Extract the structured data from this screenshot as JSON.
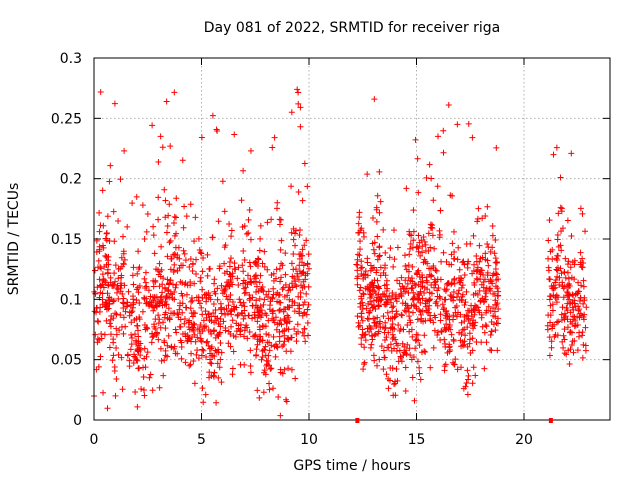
{
  "chart_data": {
    "type": "scatter",
    "title": "Day 081 of 2022, SRMTID for receiver riga",
    "xlabel": "GPS time / hours",
    "ylabel": "SRMTID / TECUs",
    "xlim": [
      0,
      24
    ],
    "ylim": [
      0,
      0.3
    ],
    "xticks": [
      0,
      5,
      10,
      15,
      20
    ],
    "xtick_labels": [
      "0",
      "5",
      "10",
      "15",
      "20"
    ],
    "yticks": [
      0,
      0.05,
      0.1,
      0.15,
      0.2,
      0.25,
      0.3
    ],
    "ytick_labels": [
      "0",
      "0.05",
      "0.1",
      "0.15",
      "0.2",
      "0.25",
      "0.3"
    ],
    "grid": true,
    "marker": "+",
    "color": "#ff0000",
    "segments": [
      {
        "start": 0.0,
        "end": 10.0,
        "baseline": 0.09,
        "spread": 0.028,
        "count": 1100
      },
      {
        "start": 12.2,
        "end": 18.8,
        "baseline": 0.095,
        "spread": 0.028,
        "count": 800
      },
      {
        "start": 21.1,
        "end": 22.9,
        "baseline": 0.092,
        "spread": 0.025,
        "count": 200
      }
    ],
    "peaks": [
      {
        "x": 1.4,
        "y": 0.223
      },
      {
        "x": 3.1,
        "y": 0.235
      },
      {
        "x": 3.2,
        "y": 0.226
      },
      {
        "x": 7.3,
        "y": 0.223
      },
      {
        "x": 8.4,
        "y": 0.234
      },
      {
        "x": 9.2,
        "y": 0.255
      },
      {
        "x": 9.45,
        "y": 0.274
      },
      {
        "x": 9.5,
        "y": 0.262
      },
      {
        "x": 9.6,
        "y": 0.243
      },
      {
        "x": 16.5,
        "y": 0.261
      },
      {
        "x": 16.9,
        "y": 0.245
      },
      {
        "x": 17.6,
        "y": 0.234
      },
      {
        "x": 16.0,
        "y": 0.235
      },
      {
        "x": 22.2,
        "y": 0.221
      },
      {
        "x": 21.7,
        "y": 0.201
      },
      {
        "x": 1.0,
        "y": 0.02
      },
      {
        "x": 14.5,
        "y": 0.024
      },
      {
        "x": 7.9,
        "y": 0.023
      }
    ],
    "gap_markers": [
      12.25,
      21.25
    ]
  }
}
